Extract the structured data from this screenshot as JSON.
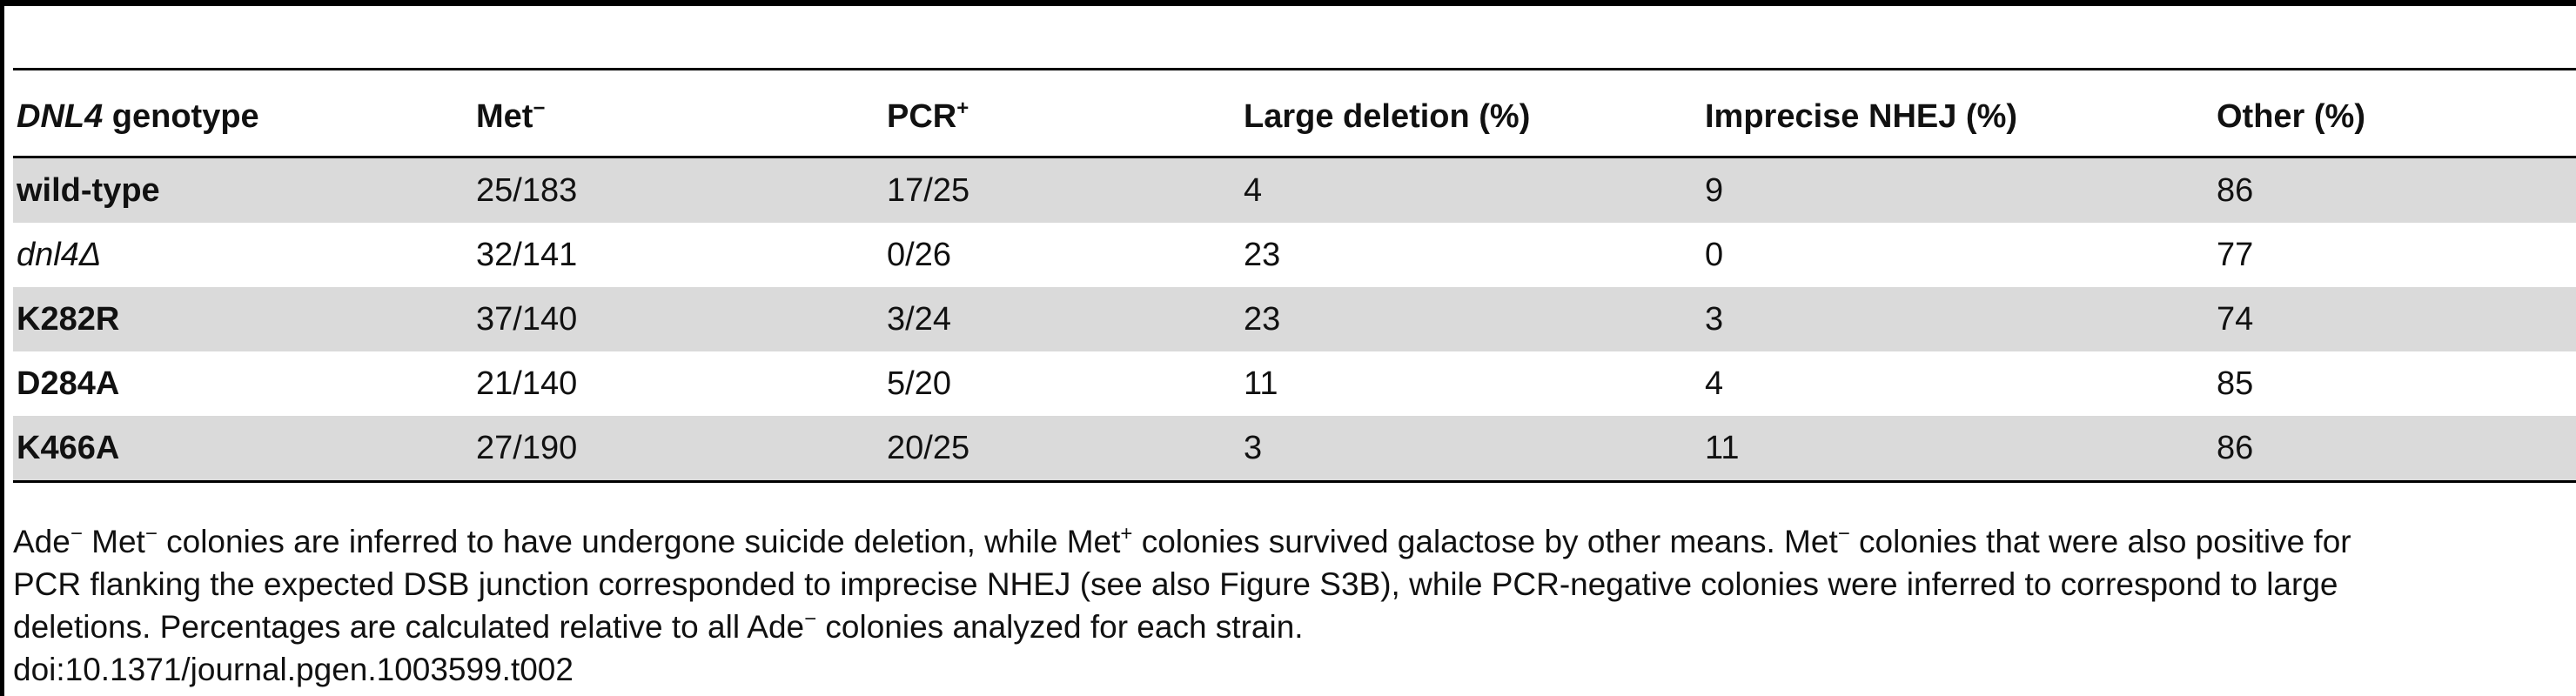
{
  "table": {
    "columns": [
      {
        "main": "DNL4",
        "rest": " genotype"
      },
      {
        "main": "Met",
        "sup": "−"
      },
      {
        "main": "PCR",
        "sup": "+"
      },
      {
        "main": "Large deletion (%)"
      },
      {
        "main": "Imprecise NHEJ (%)"
      },
      {
        "main": "Other (%)"
      }
    ],
    "rows": [
      {
        "genotype": "wild-type",
        "genotype_style": "bold",
        "met_minus": "25/183",
        "pcr_plus": "17/25",
        "large_deletion": "4",
        "imprecise_nhej": "9",
        "other": "86",
        "shaded": true
      },
      {
        "genotype": "dnl4Δ",
        "genotype_style": "italic",
        "met_minus": "32/141",
        "pcr_plus": "0/26",
        "large_deletion": "23",
        "imprecise_nhej": "0",
        "other": "77",
        "shaded": false
      },
      {
        "genotype": "K282R",
        "genotype_style": "bold",
        "met_minus": "37/140",
        "pcr_plus": "3/24",
        "large_deletion": "23",
        "imprecise_nhej": "3",
        "other": "74",
        "shaded": true
      },
      {
        "genotype": "D284A",
        "genotype_style": "bold",
        "met_minus": "21/140",
        "pcr_plus": "5/20",
        "large_deletion": "11",
        "imprecise_nhej": "4",
        "other": "85",
        "shaded": false
      },
      {
        "genotype": "K466A",
        "genotype_style": "bold",
        "met_minus": "27/190",
        "pcr_plus": "20/25",
        "large_deletion": "3",
        "imprecise_nhej": "11",
        "other": "86",
        "shaded": true
      }
    ]
  },
  "footnote": {
    "line1": {
      "a": "Ade",
      "a_sup": "−",
      "b": " Met",
      "b_sup": "−",
      "c": " colonies are inferred to have undergone suicide deletion, while Met",
      "c_sup": "+",
      "d": " colonies survived galactose by other means. Met",
      "d_sup": "−",
      "e": " colonies that were also positive for"
    },
    "line2": "PCR flanking the expected DSB junction corresponded to imprecise NHEJ (see also Figure S3B), while PCR-negative colonies were inferred to correspond to large",
    "line3": {
      "a": "deletions. Percentages are calculated relative to all Ade",
      "a_sup": "−",
      "b": " colonies analyzed for each strain."
    },
    "doi": "doi:10.1371/journal.pgen.1003599.t002"
  },
  "colors": {
    "shaded_row": "#dadada",
    "rule": "#000000",
    "text": "#111111"
  }
}
